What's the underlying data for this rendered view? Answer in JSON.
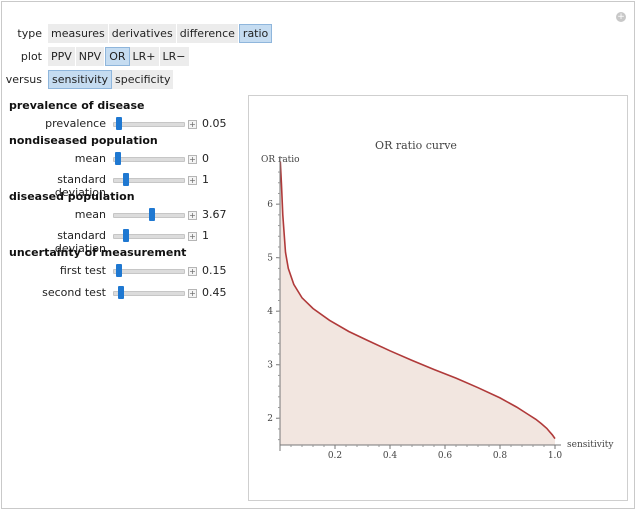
{
  "controls": {
    "type": {
      "label": "type",
      "options": [
        "measures",
        "derivatives",
        "difference",
        "ratio"
      ],
      "selected": "ratio"
    },
    "plot": {
      "label": "plot",
      "options": [
        "PPV",
        "NPV",
        "OR",
        "LR+",
        "LR−"
      ],
      "selected": "OR"
    },
    "versus": {
      "label": "versus",
      "options": [
        "sensitivity",
        "specificity"
      ],
      "selected": "sensitivity"
    }
  },
  "sections": {
    "prevalence": "prevalence of disease",
    "nondiseased": "nondiseased population",
    "diseased": "diseased population",
    "uncertainty": "uncertainty of measurement"
  },
  "sliders": [
    {
      "label": "prevalence",
      "value": "0.05",
      "fraction": 0.05
    },
    {
      "label": "mean",
      "value": "0",
      "fraction": 0.03
    },
    {
      "label": "standard deviation",
      "value": "1",
      "fraction": 0.15
    },
    {
      "label": "mean",
      "value": "3.67",
      "fraction": 0.57
    },
    {
      "label": "standard deviation",
      "value": "1",
      "fraction": 0.15
    },
    {
      "label": "first test",
      "value": "0.15",
      "fraction": 0.04
    },
    {
      "label": "second test",
      "value": "0.45",
      "fraction": 0.08
    }
  ],
  "icons": {
    "corner": "plus-circle-icon",
    "increment": "plus-square-icon"
  },
  "chart_data": {
    "type": "area",
    "title": "OR ratio curve",
    "xlabel": "sensitivity",
    "ylabel": "OR ratio",
    "xlim": [
      0,
      1
    ],
    "ylim": [
      1.5,
      6.9
    ],
    "xticks": [
      "0.2",
      "0.4",
      "0.6",
      "0.8",
      "1.0"
    ],
    "yticks": [
      "2",
      "3",
      "4",
      "5",
      "6"
    ],
    "line_color": "#b03a3a",
    "fill_color": "#f2e6e0",
    "series": [
      {
        "x": [
          0.001,
          0.005,
          0.01,
          0.02,
          0.03,
          0.05,
          0.08,
          0.12,
          0.18,
          0.25,
          0.32,
          0.4,
          0.48,
          0.56,
          0.64,
          0.72,
          0.8,
          0.86,
          0.9,
          0.93,
          0.95,
          0.97,
          0.98,
          0.99,
          1.0
        ],
        "y": [
          6.8,
          6.4,
          5.8,
          5.1,
          4.8,
          4.5,
          4.25,
          4.05,
          3.83,
          3.62,
          3.45,
          3.26,
          3.08,
          2.91,
          2.75,
          2.57,
          2.38,
          2.21,
          2.08,
          1.98,
          1.9,
          1.81,
          1.75,
          1.69,
          1.62
        ]
      }
    ]
  }
}
